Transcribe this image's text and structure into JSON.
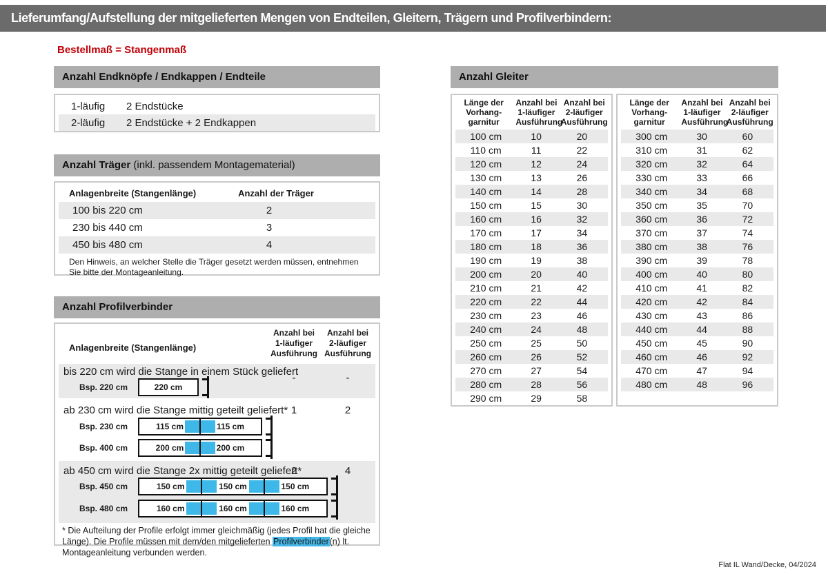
{
  "banner": {
    "title": "Lieferumfang/Aufstellung der mitgelieferten Mengen von Endteilen, Gleitern, Trägern und Profilverbindern:"
  },
  "subtitle": "Bestellmaß = Stangenmaß",
  "endteile": {
    "header": "Anzahl Endknöpfe / Endkappen / Endteile",
    "rows": [
      [
        "1-läufig",
        "2 Endstücke"
      ],
      [
        "2-läufig",
        "2 Endstücke + 2 Endkappen"
      ]
    ]
  },
  "traeger": {
    "header_bold": "Anzahl Träger",
    "header_rest": " (inkl. passendem Montagematerial)",
    "col1": "Anlagenbreite (Stangenlänge)",
    "col2": "Anzahl der Träger",
    "rows": [
      [
        "100 bis 220 cm",
        "2"
      ],
      [
        "230 bis 440 cm",
        "3"
      ],
      [
        "450 bis 480 cm",
        "4"
      ]
    ],
    "note": "Den Hinweis, an welcher Stelle die Träger gesetzt werden müssen, entnehmen Sie bitte der Montageanleitung."
  },
  "profilverbinder": {
    "header": "Anzahl Profilverbinder",
    "col1": "Anlagenbreite (Stangenlänge)",
    "col2": [
      "Anzahl bei",
      "1-läufiger",
      "Ausführung"
    ],
    "col3": [
      "Anzahl bei",
      "2-läufiger",
      "Ausführung"
    ],
    "rows": [
      {
        "text": "bis 220 cm wird die Stange in einem Stück geliefert",
        "one": "-",
        "two": "-",
        "diagrams": [
          {
            "label": "Bsp. 220 cm",
            "segments": [
              "220 cm"
            ]
          }
        ]
      },
      {
        "text": "ab 230 cm wird die Stange mittig geteilt geliefert*",
        "one": "1",
        "two": "2",
        "diagrams": [
          {
            "label": "Bsp. 230 cm",
            "segments": [
              "115 cm",
              "115 cm"
            ]
          },
          {
            "label": "Bsp. 400 cm",
            "segments": [
              "200 cm",
              "200 cm"
            ]
          }
        ]
      },
      {
        "text": "ab 450 cm wird die Stange 2x mittig geteilt geliefert*",
        "one": "2",
        "two": "4",
        "diagrams": [
          {
            "label": "Bsp. 450 cm",
            "segments": [
              "150 cm",
              "150 cm",
              "150 cm"
            ]
          },
          {
            "label": "Bsp. 480 cm",
            "segments": [
              "160 cm",
              "160 cm",
              "160 cm"
            ]
          }
        ]
      }
    ],
    "footnote_pre": "* Die Aufteilung der Profile erfolgt immer gleichmäßig (jedes Profil hat die gleiche Länge). Die Profile müssen mit dem/den mitgelieferten ",
    "footnote_highlight": "Profilverbinder",
    "footnote_post": "(n) lt. Montageanleitung verbunden werden."
  },
  "gleiter": {
    "header": "Anzahl Gleiter",
    "col_headers": [
      [
        "Länge der",
        "Vorhang-",
        "garnitur"
      ],
      [
        "Anzahl bei",
        "1-läufiger",
        "Ausführung"
      ],
      [
        "Anzahl bei",
        "2-läufiger",
        "Ausführung"
      ]
    ],
    "left_rows": [
      [
        "100 cm",
        "10",
        "20"
      ],
      [
        "110 cm",
        "11",
        "22"
      ],
      [
        "120 cm",
        "12",
        "24"
      ],
      [
        "130 cm",
        "13",
        "26"
      ],
      [
        "140 cm",
        "14",
        "28"
      ],
      [
        "150 cm",
        "15",
        "30"
      ],
      [
        "160 cm",
        "16",
        "32"
      ],
      [
        "170 cm",
        "17",
        "34"
      ],
      [
        "180 cm",
        "18",
        "36"
      ],
      [
        "190 cm",
        "19",
        "38"
      ],
      [
        "200 cm",
        "20",
        "40"
      ],
      [
        "210 cm",
        "21",
        "42"
      ],
      [
        "220 cm",
        "22",
        "44"
      ],
      [
        "230 cm",
        "23",
        "46"
      ],
      [
        "240 cm",
        "24",
        "48"
      ],
      [
        "250 cm",
        "25",
        "50"
      ],
      [
        "260 cm",
        "26",
        "52"
      ],
      [
        "270 cm",
        "27",
        "54"
      ],
      [
        "280 cm",
        "28",
        "56"
      ],
      [
        "290 cm",
        "29",
        "58"
      ]
    ],
    "right_rows": [
      [
        "300 cm",
        "30",
        "60"
      ],
      [
        "310 cm",
        "31",
        "62"
      ],
      [
        "320 cm",
        "32",
        "64"
      ],
      [
        "330 cm",
        "33",
        "66"
      ],
      [
        "340 cm",
        "34",
        "68"
      ],
      [
        "350 cm",
        "35",
        "70"
      ],
      [
        "360 cm",
        "36",
        "72"
      ],
      [
        "370 cm",
        "37",
        "74"
      ],
      [
        "380 cm",
        "38",
        "76"
      ],
      [
        "390 cm",
        "39",
        "78"
      ],
      [
        "400 cm",
        "40",
        "80"
      ],
      [
        "410 cm",
        "41",
        "82"
      ],
      [
        "420 cm",
        "42",
        "84"
      ],
      [
        "430 cm",
        "43",
        "86"
      ],
      [
        "440 cm",
        "44",
        "88"
      ],
      [
        "450 cm",
        "45",
        "90"
      ],
      [
        "460 cm",
        "46",
        "92"
      ],
      [
        "470 cm",
        "47",
        "94"
      ],
      [
        "480 cm",
        "48",
        "96"
      ]
    ]
  },
  "footer": "Flat IL Wand/Decke, 04/2024",
  "colors": {
    "banner_gray": "#6b6b6b",
    "section_header_gray": "#aeaeae",
    "row_shade_gray": "#e9e9e9",
    "accent_blue": "#3db8e8",
    "accent_red": "#c10008"
  }
}
